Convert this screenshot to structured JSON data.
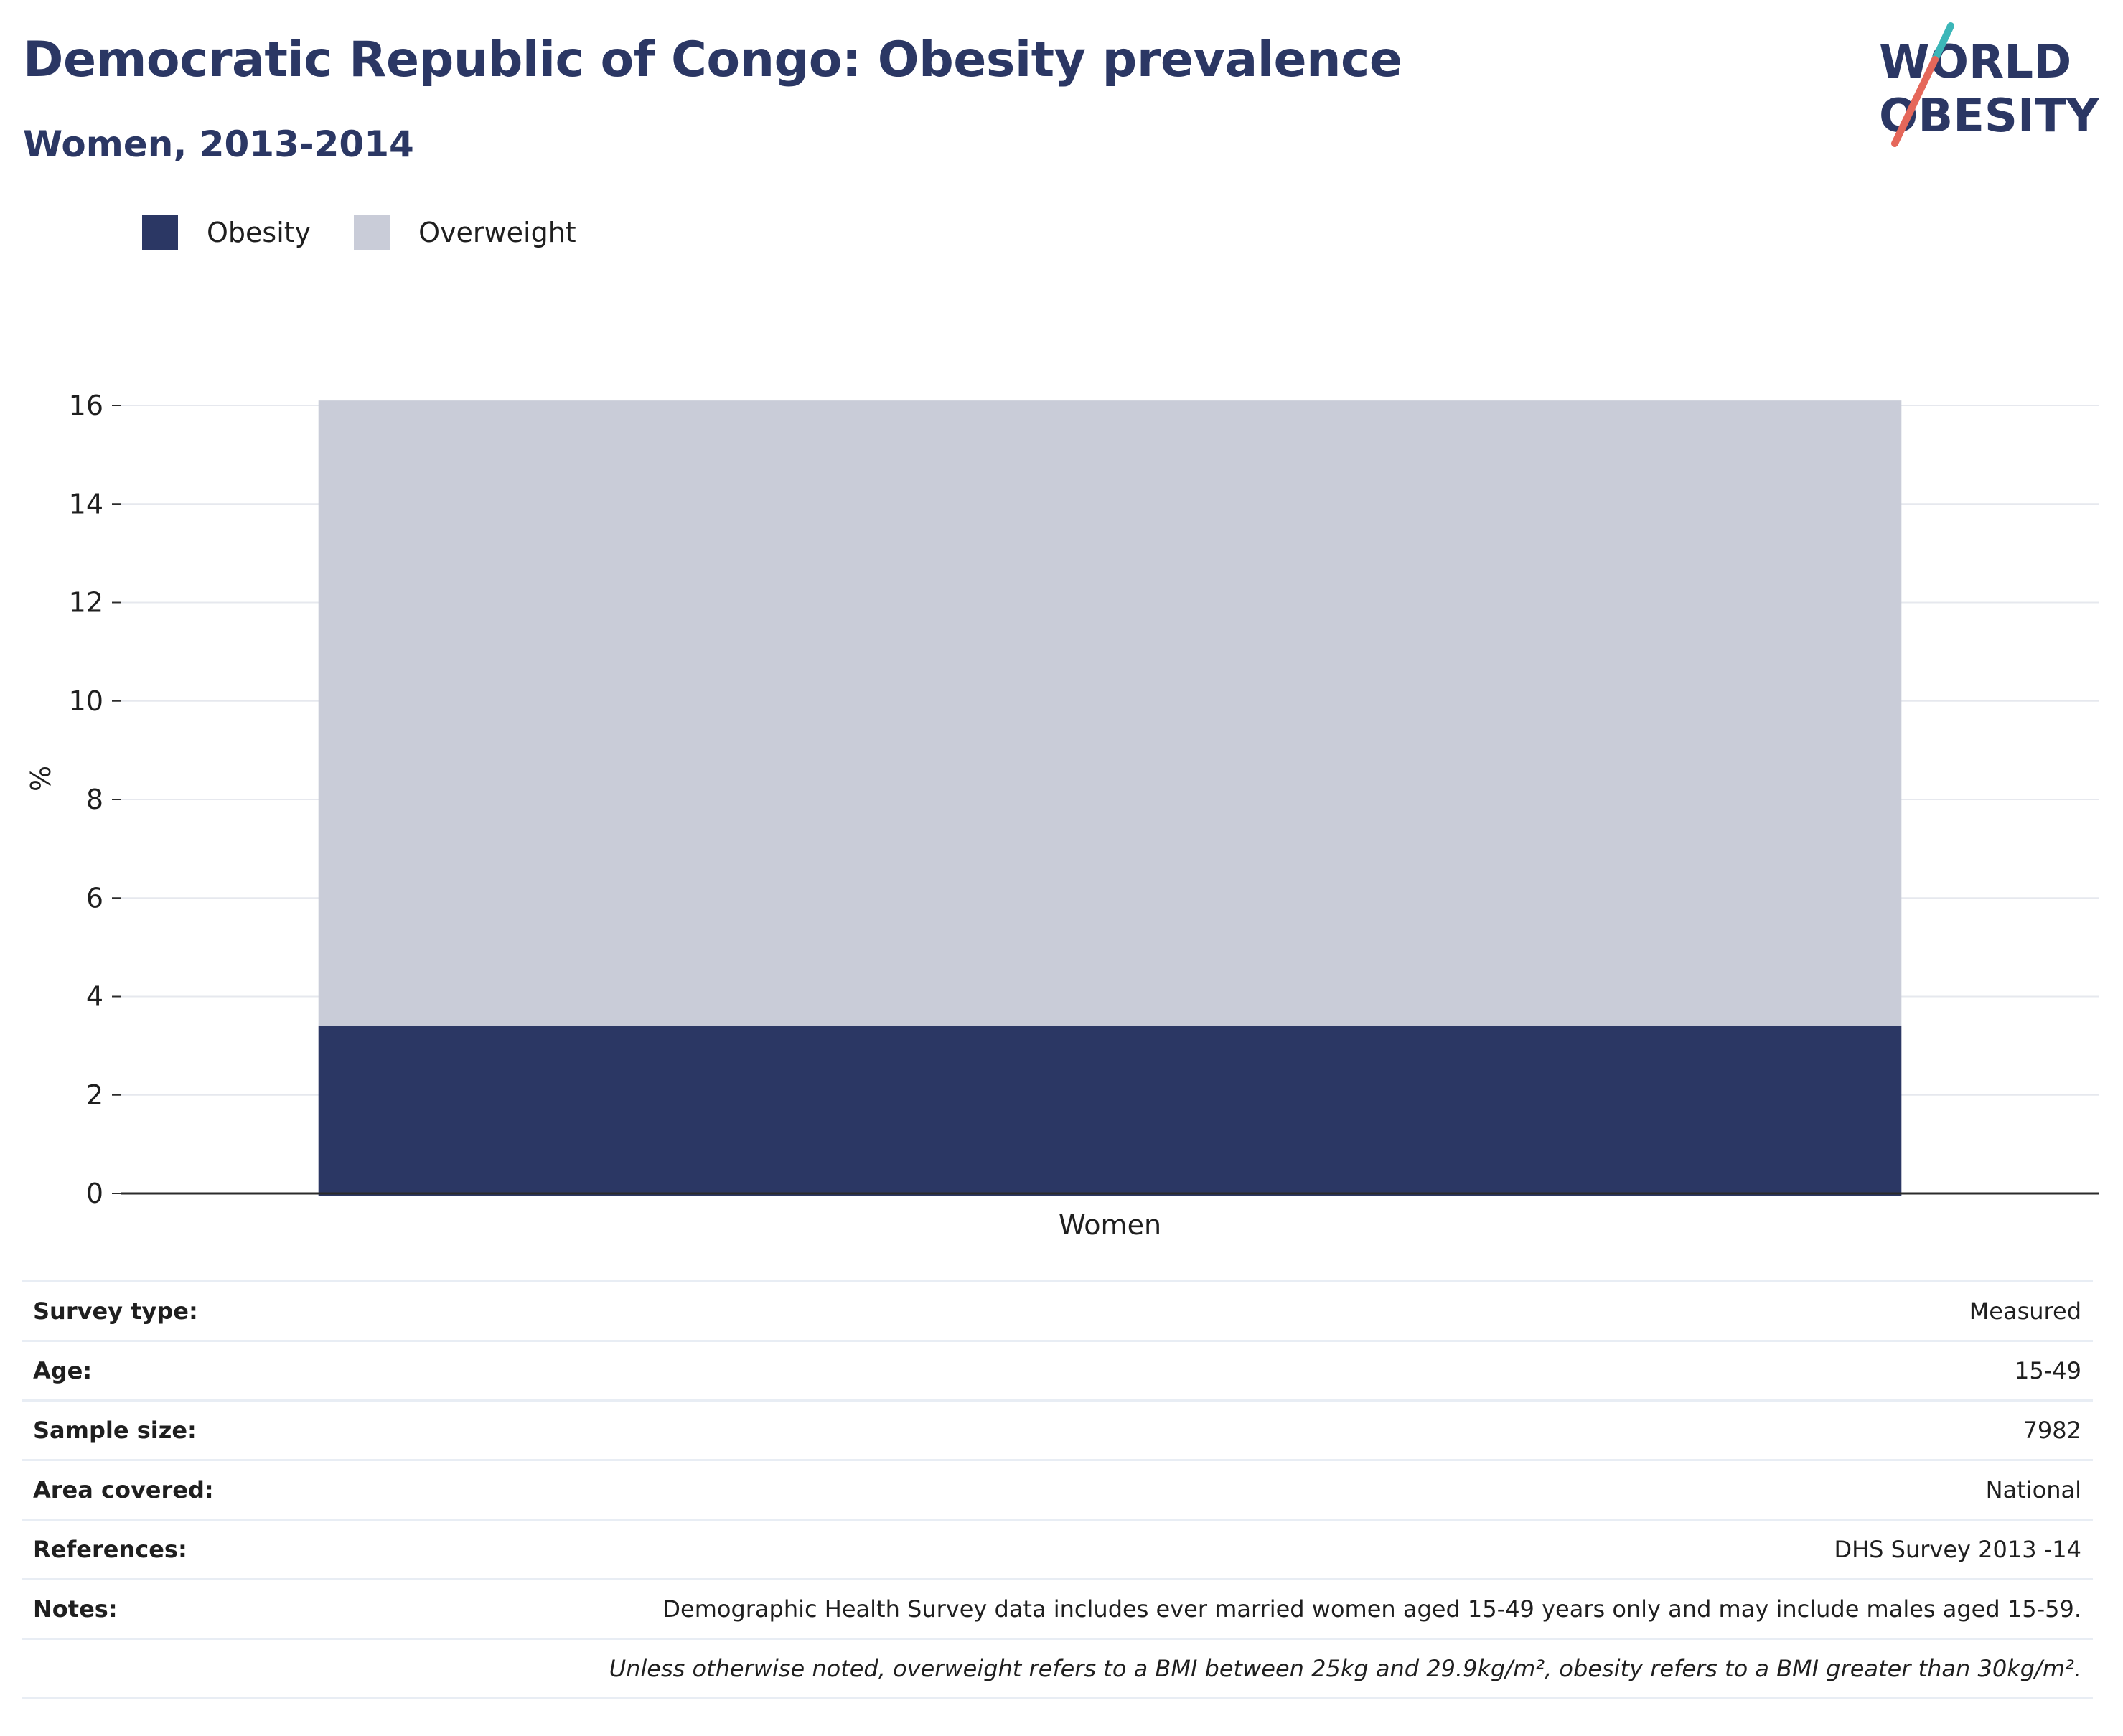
{
  "header": {
    "title": "Democratic Republic of Congo: Obesity prevalence",
    "subtitle": "Women, 2013-2014"
  },
  "logo": {
    "line1": "WORLD",
    "line2": "OBESITY",
    "colors": {
      "text": "#2b3764",
      "accent_teal": "#3bb6b8",
      "accent_red": "#e5675a"
    }
  },
  "legend": [
    {
      "label": "Obesity",
      "color": "#2b3764"
    },
    {
      "label": "Overweight",
      "color": "#c9ccd8"
    }
  ],
  "chart_data": {
    "type": "bar",
    "stacked": true,
    "categories": [
      "Women"
    ],
    "series": [
      {
        "name": "Obesity",
        "values": [
          3.4
        ],
        "color": "#2b3764"
      },
      {
        "name": "Overweight",
        "values": [
          12.7
        ],
        "color": "#c9ccd8"
      }
    ],
    "ylabel": "%",
    "xlabel": "",
    "ylim": [
      0,
      16
    ],
    "yticks": [
      0,
      2,
      4,
      6,
      8,
      10,
      12,
      14,
      16
    ],
    "grid": true,
    "legend_position": "top-left"
  },
  "info": {
    "rows": [
      {
        "key": "Survey type:",
        "value": "Measured"
      },
      {
        "key": "Age:",
        "value": "15-49"
      },
      {
        "key": "Sample size:",
        "value": "7982"
      },
      {
        "key": "Area covered:",
        "value": "National"
      },
      {
        "key": "References:",
        "value": "DHS Survey 2013 -14"
      },
      {
        "key": "Notes:",
        "value": "Demographic Health Survey data includes ever married women aged 15-49 years only and may include males aged 15-59."
      }
    ],
    "footnote": "Unless otherwise noted, overweight refers to a BMI between 25kg and 29.9kg/m², obesity refers to a BMI greater than 30kg/m²."
  }
}
